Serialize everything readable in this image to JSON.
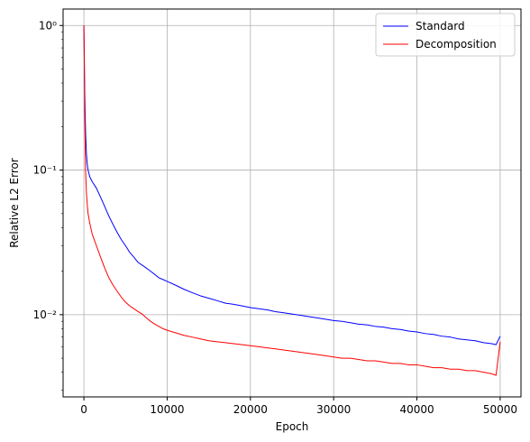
{
  "chart_data": {
    "type": "line",
    "title": "",
    "xlabel": "Epoch",
    "ylabel": "Relative L2 Error",
    "xlim": [
      -2500,
      52500
    ],
    "ylim": [
      0.0027,
      1.3
    ],
    "yscale": "log",
    "grid": true,
    "legend_position": "top-right",
    "x_ticks": [
      0,
      10000,
      20000,
      30000,
      40000,
      50000
    ],
    "x_tick_labels": [
      "0",
      "10000",
      "20000",
      "30000",
      "40000",
      "50000"
    ],
    "y_ticks": [
      0.01,
      0.1,
      1
    ],
    "y_tick_labels": [
      "10⁻²",
      "10⁻¹",
      "10⁰"
    ],
    "series": [
      {
        "name": "Standard",
        "color": "#0000ff",
        "x": [
          0,
          100,
          200,
          300,
          400,
          500,
          700,
          1000,
          1500,
          2000,
          2500,
          3000,
          3500,
          4000,
          4500,
          5000,
          5500,
          6000,
          6500,
          7000,
          7500,
          8000,
          8500,
          9000,
          9500,
          10000,
          11000,
          12000,
          13000,
          14000,
          15000,
          16000,
          17000,
          18000,
          19000,
          20000,
          21000,
          22000,
          23000,
          24000,
          25000,
          26000,
          27000,
          28000,
          29000,
          30000,
          31000,
          32000,
          33000,
          34000,
          35000,
          36000,
          37000,
          38000,
          39000,
          40000,
          41000,
          42000,
          43000,
          44000,
          45000,
          46000,
          47000,
          48000,
          49000,
          49500,
          50000
        ],
        "y": [
          1.0,
          0.35,
          0.18,
          0.13,
          0.11,
          0.1,
          0.09,
          0.083,
          0.075,
          0.065,
          0.056,
          0.048,
          0.042,
          0.037,
          0.033,
          0.03,
          0.027,
          0.025,
          0.023,
          0.022,
          0.021,
          0.02,
          0.019,
          0.018,
          0.0175,
          0.017,
          0.016,
          0.015,
          0.0142,
          0.0135,
          0.013,
          0.0125,
          0.012,
          0.0118,
          0.0115,
          0.0112,
          0.011,
          0.0108,
          0.0105,
          0.0103,
          0.0101,
          0.0099,
          0.0097,
          0.0095,
          0.0093,
          0.0091,
          0.009,
          0.0088,
          0.0086,
          0.0085,
          0.0083,
          0.0082,
          0.008,
          0.0079,
          0.0077,
          0.0076,
          0.0074,
          0.0073,
          0.0071,
          0.007,
          0.0068,
          0.0067,
          0.0066,
          0.0064,
          0.0063,
          0.0062,
          0.0071
        ]
      },
      {
        "name": "Decomposition",
        "color": "#ff0000",
        "x": [
          0,
          100,
          200,
          300,
          400,
          500,
          700,
          1000,
          1500,
          2000,
          2500,
          3000,
          3500,
          4000,
          4500,
          5000,
          5500,
          6000,
          6500,
          7000,
          7500,
          8000,
          8500,
          9000,
          9500,
          10000,
          11000,
          12000,
          13000,
          14000,
          15000,
          16000,
          17000,
          18000,
          19000,
          20000,
          21000,
          22000,
          23000,
          24000,
          25000,
          26000,
          27000,
          28000,
          29000,
          30000,
          31000,
          32000,
          33000,
          34000,
          35000,
          36000,
          37000,
          38000,
          39000,
          40000,
          41000,
          42000,
          43000,
          44000,
          45000,
          46000,
          47000,
          48000,
          49000,
          49500,
          50000
        ],
        "y": [
          1.0,
          0.25,
          0.1,
          0.07,
          0.058,
          0.05,
          0.043,
          0.036,
          0.03,
          0.025,
          0.021,
          0.018,
          0.016,
          0.0145,
          0.0132,
          0.0122,
          0.0115,
          0.011,
          0.0105,
          0.0101,
          0.0095,
          0.009,
          0.0086,
          0.0083,
          0.008,
          0.0078,
          0.0075,
          0.0072,
          0.007,
          0.0068,
          0.0066,
          0.0065,
          0.0064,
          0.0063,
          0.0062,
          0.0061,
          0.006,
          0.0059,
          0.0058,
          0.0057,
          0.0056,
          0.0055,
          0.0054,
          0.0053,
          0.0052,
          0.0051,
          0.005,
          0.005,
          0.0049,
          0.0048,
          0.0048,
          0.0047,
          0.0046,
          0.0046,
          0.0045,
          0.0045,
          0.0044,
          0.0043,
          0.0043,
          0.0042,
          0.0042,
          0.0041,
          0.0041,
          0.004,
          0.0039,
          0.0038,
          0.0065
        ]
      }
    ]
  }
}
